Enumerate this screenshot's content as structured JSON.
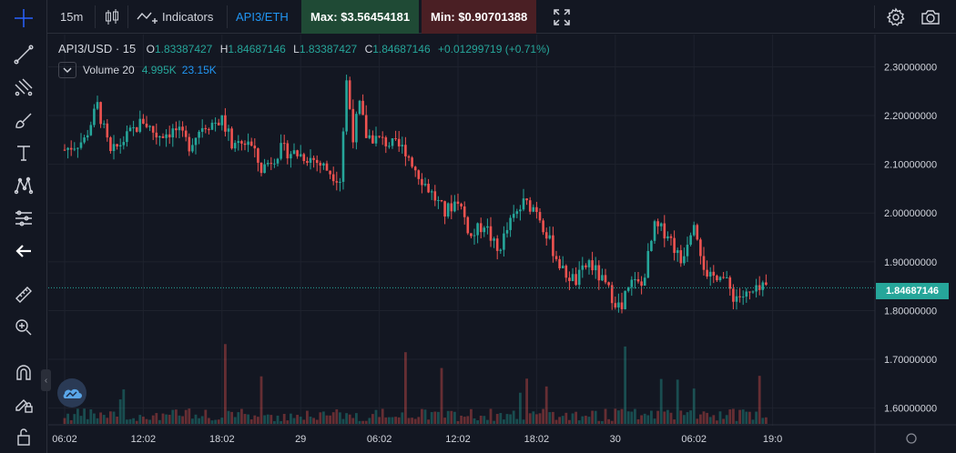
{
  "toolbar": {
    "interval": "15m",
    "indicators_label": "Indicators",
    "pair_link": "API3/ETH",
    "max_label": "Max: $3.56454181",
    "min_label": "Min: $0.90701388",
    "max_color": "#1f4a35",
    "min_color": "#4a1f24"
  },
  "legend": {
    "symbol": "API3/USD · 15",
    "open_key": "O",
    "open": "1.83387427",
    "high_key": "H",
    "high": "1.84687146",
    "low_key": "L",
    "low": "1.83387427",
    "close_key": "C",
    "close": "1.84687146",
    "change": "+0.01299719 (+0.71%)"
  },
  "volume": {
    "label": "Volume 20",
    "value1": "4.995K",
    "value2": "23.15K"
  },
  "colors": {
    "up": "#26a69a",
    "down": "#ef5350",
    "background": "#131722",
    "grid": "#1e222d"
  },
  "left_tools": [
    "crosshair-icon",
    "trend-line-icon",
    "fib-icon",
    "brush-icon",
    "text-icon",
    "pattern-icon",
    "prediction-icon",
    "back-arrow-icon",
    "ruler-icon",
    "zoom-in-icon",
    "magnet-icon",
    "lock-draw-icon",
    "lock-icon"
  ],
  "chart_data": {
    "type": "candlestick",
    "current_price": "1.84687146",
    "ylim": [
      1.59,
      2.34
    ],
    "y_ticks": [
      "2.30000000",
      "2.20000000",
      "2.10000000",
      "2.00000000",
      "1.90000000",
      "1.80000000",
      "1.70000000",
      "1.60000000"
    ],
    "y_tick_values": [
      2.3,
      2.2,
      2.1,
      2.0,
      1.9,
      1.8,
      1.7,
      1.6
    ],
    "x_ticks": [
      "06:02",
      "12:02",
      "18:02",
      "29",
      "06:02",
      "12:02",
      "18:02",
      "30",
      "06:02",
      "19:0"
    ],
    "x_tick_index": [
      0,
      24,
      48,
      72,
      96,
      120,
      144,
      168,
      192,
      216
    ],
    "close_path": [
      [
        0,
        2.13
      ],
      [
        6,
        2.15
      ],
      [
        10,
        2.22
      ],
      [
        14,
        2.12
      ],
      [
        18,
        2.15
      ],
      [
        24,
        2.19
      ],
      [
        28,
        2.16
      ],
      [
        34,
        2.17
      ],
      [
        38,
        2.14
      ],
      [
        42,
        2.18
      ],
      [
        48,
        2.19
      ],
      [
        52,
        2.13
      ],
      [
        56,
        2.15
      ],
      [
        60,
        2.09
      ],
      [
        66,
        2.13
      ],
      [
        72,
        2.12
      ],
      [
        76,
        2.11
      ],
      [
        80,
        2.09
      ],
      [
        84,
        2.07
      ],
      [
        86,
        2.27
      ],
      [
        88,
        2.16
      ],
      [
        90,
        2.22
      ],
      [
        92,
        2.16
      ],
      [
        96,
        2.15
      ],
      [
        100,
        2.14
      ],
      [
        104,
        2.13
      ],
      [
        108,
        2.08
      ],
      [
        112,
        2.04
      ],
      [
        116,
        2.0
      ],
      [
        120,
        2.03
      ],
      [
        124,
        1.95
      ],
      [
        128,
        1.98
      ],
      [
        132,
        1.92
      ],
      [
        136,
        1.98
      ],
      [
        140,
        2.02
      ],
      [
        144,
        2.01
      ],
      [
        148,
        1.94
      ],
      [
        152,
        1.88
      ],
      [
        156,
        1.86
      ],
      [
        160,
        1.9
      ],
      [
        164,
        1.86
      ],
      [
        168,
        1.82
      ],
      [
        170,
        1.8
      ],
      [
        172,
        1.86
      ],
      [
        176,
        1.85
      ],
      [
        180,
        1.97
      ],
      [
        184,
        1.96
      ],
      [
        188,
        1.9
      ],
      [
        192,
        1.99
      ],
      [
        196,
        1.86
      ],
      [
        200,
        1.88
      ],
      [
        204,
        1.83
      ],
      [
        208,
        1.83
      ],
      [
        212,
        1.84
      ],
      [
        214,
        1.847
      ]
    ],
    "volume_max": 23.15
  }
}
